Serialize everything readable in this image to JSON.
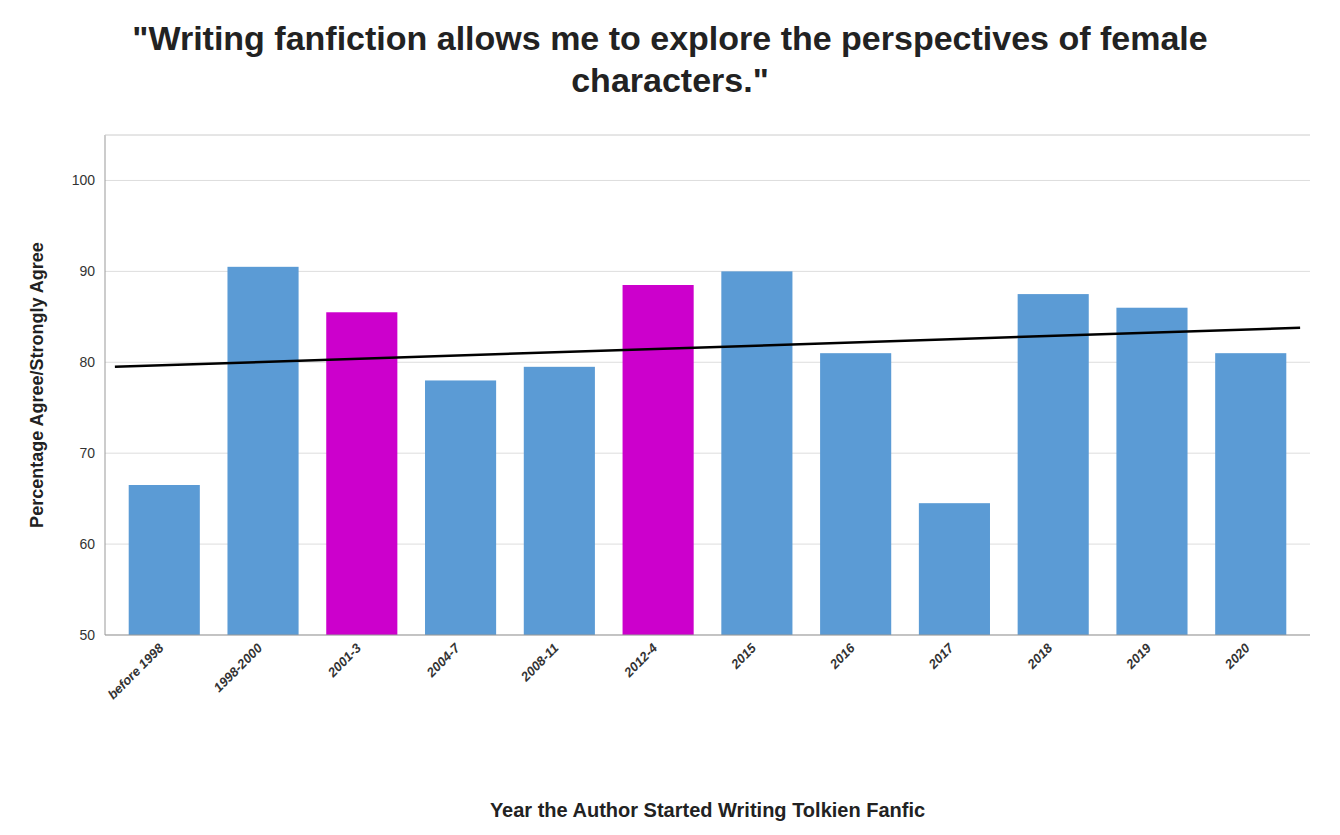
{
  "chart_data": {
    "type": "bar",
    "title": "\"Writing fanfiction allows me to explore the perspectives of female characters.\"",
    "x_label": "Year the Author Started Writing Tolkien Fanfic",
    "y_label": "Percentage Agree/Strongly Agree",
    "categories": [
      "before 1998",
      "1998-2000",
      "2001-3",
      "2004-7",
      "2008-11",
      "2012-4",
      "2015",
      "2016",
      "2017",
      "2018",
      "2019",
      "2020"
    ],
    "values": [
      66.5,
      90.5,
      85.5,
      78.0,
      79.5,
      88.5,
      90.0,
      81.0,
      64.5,
      87.5,
      86.0,
      81.0
    ],
    "colors": [
      "#5b9bd5",
      "#5b9bd5",
      "#cc00cc",
      "#5b9bd5",
      "#5b9bd5",
      "#cc00cc",
      "#5b9bd5",
      "#5b9bd5",
      "#5b9bd5",
      "#5b9bd5",
      "#5b9bd5",
      "#5b9bd5"
    ],
    "trendline": {
      "x": [
        -0.5,
        11.5
      ],
      "values": [
        79.5,
        83.8
      ],
      "color": "#000000"
    },
    "ylim": [
      50,
      105
    ],
    "yticks": [
      50,
      60,
      70,
      80,
      90,
      100
    ],
    "grid": true
  }
}
